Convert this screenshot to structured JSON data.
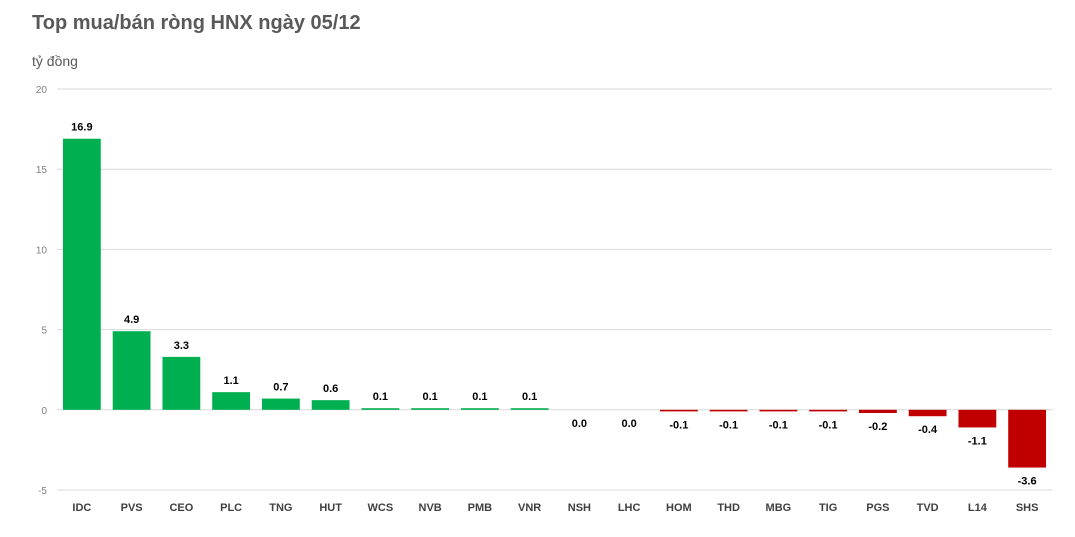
{
  "title": "Top mua/bán ròng HNX ngày 05/12",
  "unit_label": "tỷ đồng",
  "colors": {
    "positive": "#00b050",
    "negative": "#c00000",
    "grid": "#d9d9d9"
  },
  "chart_data": {
    "type": "bar",
    "title": "Top mua/bán ròng HNX ngày 05/12",
    "ylabel": "tỷ đồng",
    "xlabel": "",
    "ylim": [
      -5,
      20
    ],
    "yticks": [
      20,
      15,
      10,
      5,
      0,
      -5
    ],
    "grid": true,
    "categories": [
      "IDC",
      "PVS",
      "CEO",
      "PLC",
      "TNG",
      "HUT",
      "WCS",
      "NVB",
      "PMB",
      "VNR",
      "NSH",
      "LHC",
      "HOM",
      "THD",
      "MBG",
      "TIG",
      "PGS",
      "TVD",
      "L14",
      "SHS"
    ],
    "values": [
      16.9,
      4.9,
      3.3,
      1.1,
      0.7,
      0.6,
      0.1,
      0.1,
      0.1,
      0.1,
      0.0,
      0.0,
      -0.1,
      -0.1,
      -0.1,
      -0.1,
      -0.2,
      -0.4,
      -1.1,
      -3.6
    ],
    "data_labels": [
      "16.9",
      "4.9",
      "3.3",
      "1.1",
      "0.7",
      "0.6",
      "0.1",
      "0.1",
      "0.1",
      "0.1",
      "0.0",
      "0.0",
      "-0.1",
      "-0.1",
      "-0.1",
      "-0.1",
      "-0.2",
      "-0.4",
      "-1.1",
      "-3.6"
    ]
  }
}
